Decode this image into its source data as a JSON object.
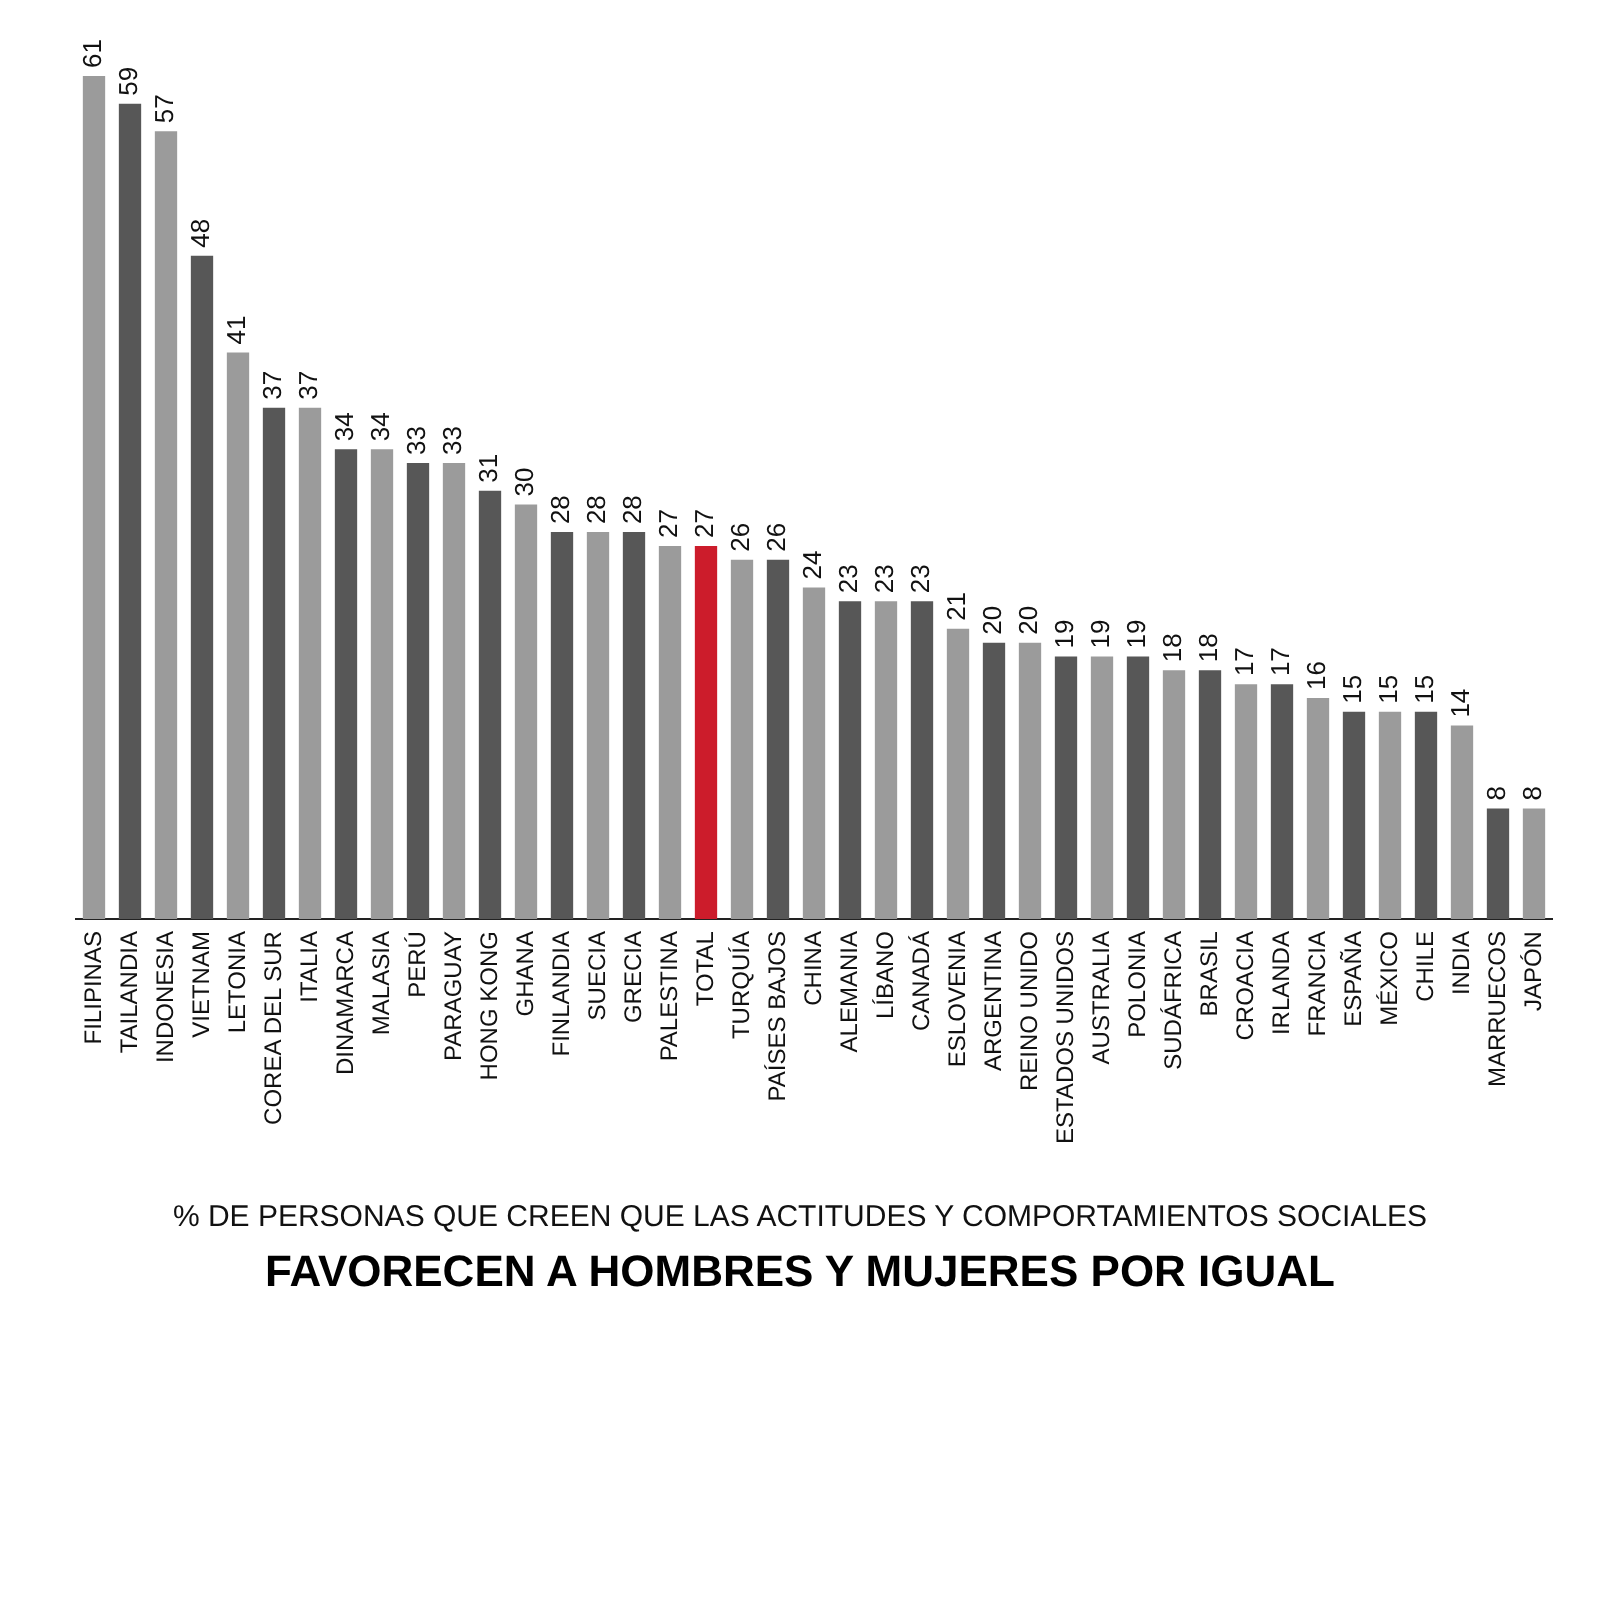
{
  "chart_data": {
    "type": "bar",
    "subtitle": "% DE PERSONAS QUE CREEN QUE LAS ACTITUDES Y COMPORTAMIENTOS SOCIALES",
    "title": "FAVORECEN A HOMBRES Y MUJERES POR IGUAL",
    "categories": [
      "FILIPINAS",
      "TAILANDIA",
      "INDONESIA",
      "VIETNAM",
      "LETONIA",
      "COREA DEL SUR",
      "ITALIA",
      "DINAMARCA",
      "MALASIA",
      "PERÚ",
      "PARAGUAY",
      "HONG KONG",
      "GHANA",
      "FINLANDIA",
      "SUECIA",
      "GRECIA",
      "PALESTINA",
      "TOTAL",
      "TURQUÍA",
      "PAÍSES BAJOS",
      "CHINA",
      "ALEMANIA",
      "LÍBANO",
      "CANADÁ",
      "ESLOVENIA",
      "ARGENTINA",
      "REINO UNIDO",
      "ESTADOS UNIDOS",
      "AUSTRALIA",
      "POLONIA",
      "SUDÁFRICA",
      "BRASIL",
      "CROACIA",
      "IRLANDA",
      "FRANCIA",
      "ESPAÑA",
      "MÉXICO",
      "CHILE",
      "INDIA",
      "MARRUECOS",
      "JAPÓN"
    ],
    "values": [
      61,
      59,
      57,
      48,
      41,
      37,
      37,
      34,
      34,
      33,
      33,
      31,
      30,
      28,
      28,
      28,
      27,
      27,
      26,
      26,
      24,
      23,
      23,
      23,
      21,
      20,
      20,
      19,
      19,
      19,
      18,
      18,
      17,
      17,
      16,
      15,
      15,
      15,
      14,
      8,
      8
    ],
    "colors": [
      "#9b9b9b",
      "#575757",
      "#9b9b9b",
      "#575757",
      "#9b9b9b",
      "#575757",
      "#9b9b9b",
      "#575757",
      "#9b9b9b",
      "#575757",
      "#9b9b9b",
      "#575757",
      "#9b9b9b",
      "#575757",
      "#9b9b9b",
      "#575757",
      "#9b9b9b",
      "#cc1c2b",
      "#9b9b9b",
      "#575757",
      "#9b9b9b",
      "#575757",
      "#9b9b9b",
      "#575757",
      "#9b9b9b",
      "#575757",
      "#9b9b9b",
      "#575757",
      "#9b9b9b",
      "#575757",
      "#9b9b9b",
      "#575757",
      "#9b9b9b",
      "#575757",
      "#9b9b9b",
      "#575757",
      "#9b9b9b",
      "#575757",
      "#9b9b9b",
      "#575757",
      "#9b9b9b"
    ],
    "data_labels": true,
    "tick_labels": "x",
    "grid": false,
    "legend": false
  }
}
